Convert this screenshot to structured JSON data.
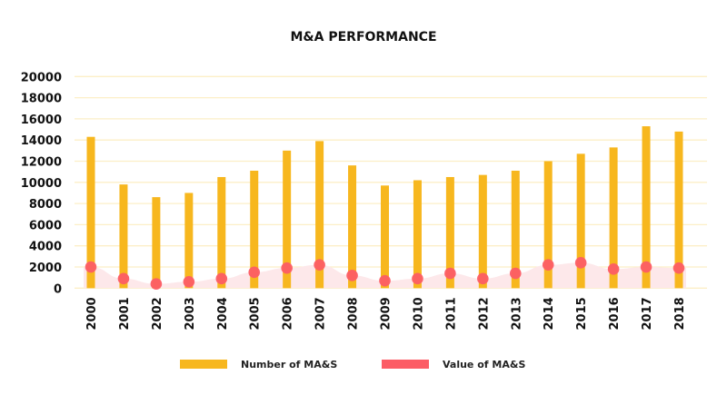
{
  "chart_data": {
    "type": "bar",
    "title": "M&A PERFORMANCE",
    "xlabel": "",
    "ylabel": "",
    "ylim": [
      0,
      20000
    ],
    "yticks": [
      0,
      2000,
      4000,
      6000,
      8000,
      10000,
      12000,
      14000,
      16000,
      18000,
      20000
    ],
    "grid": true,
    "legend_placement": "bottom",
    "categories": [
      "2000",
      "2001",
      "2002",
      "2003",
      "2004",
      "2005",
      "2006",
      "2007",
      "2008",
      "2009",
      "2010",
      "2011",
      "2012",
      "2013",
      "2014",
      "2015",
      "2016",
      "2017",
      "2018"
    ],
    "series": [
      {
        "name": "Number of MA&S",
        "type": "bar",
        "color": "#F7B71E",
        "values": [
          14300,
          9800,
          8600,
          9000,
          10500,
          11100,
          13000,
          13900,
          11600,
          9700,
          10200,
          10500,
          10700,
          11100,
          12000,
          12700,
          13300,
          15300,
          14800
        ]
      },
      {
        "name": "Value of MA&S",
        "type": "area-scatter",
        "color": "#FC5C65",
        "area_color": "#FDE8EA",
        "values": [
          2000,
          900,
          400,
          600,
          900,
          1500,
          1900,
          2200,
          1200,
          700,
          900,
          1400,
          900,
          1400,
          2200,
          2400,
          1800,
          2000,
          1900
        ]
      }
    ]
  }
}
